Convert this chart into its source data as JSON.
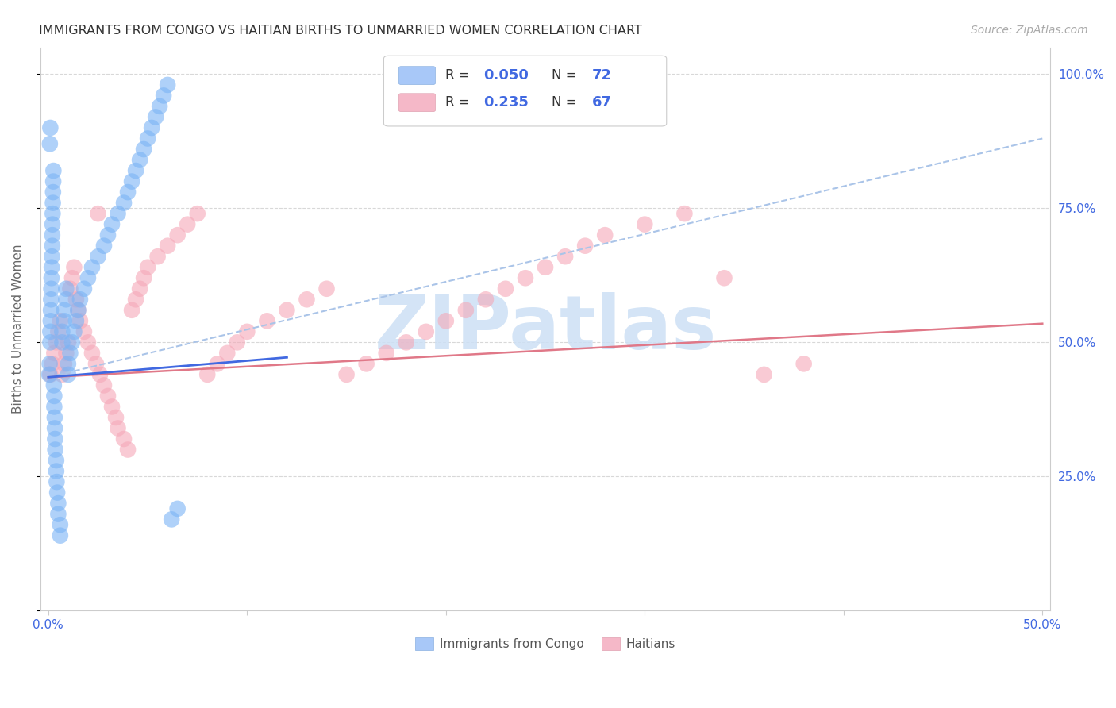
{
  "title": "IMMIGRANTS FROM CONGO VS HAITIAN BIRTHS TO UNMARRIED WOMEN CORRELATION CHART",
  "source": "Source: ZipAtlas.com",
  "ylabel": "Births to Unmarried Women",
  "congo_color": "#7ab3f5",
  "haitian_color": "#f5a8b8",
  "congo_line_color": "#4169e1",
  "haitian_line_color": "#e07888",
  "dashed_line_color": "#aac4e8",
  "watermark": "ZIPatlas",
  "watermark_color": "#cde0f5",
  "background_color": "#ffffff",
  "grid_color": "#d8d8d8",
  "axis_color": "#cccccc",
  "title_color": "#333333",
  "tick_color": "#4169e1",
  "legend_patch_congo": "#a8c8f8",
  "legend_patch_haitian": "#f5b8c8",
  "xlim": [
    -0.004,
    0.504
  ],
  "ylim": [
    0.0,
    1.05
  ],
  "x_tick_positions": [
    0.0,
    0.1,
    0.2,
    0.3,
    0.4,
    0.5
  ],
  "x_tick_labels": [
    "0.0%",
    "",
    "",
    "",
    "",
    "50.0%"
  ],
  "y_tick_positions": [
    0.0,
    0.25,
    0.5,
    0.75,
    1.0
  ],
  "y_tick_labels": [
    "",
    "25.0%",
    "50.0%",
    "75.0%",
    "100.0%"
  ],
  "congo_x": [
    0.0005,
    0.0007,
    0.0008,
    0.001,
    0.001,
    0.001,
    0.0012,
    0.0013,
    0.0014,
    0.0015,
    0.0016,
    0.0017,
    0.0018,
    0.002,
    0.002,
    0.0021,
    0.0022,
    0.0023,
    0.0024,
    0.0025,
    0.0026,
    0.0028,
    0.003,
    0.003,
    0.0032,
    0.0033,
    0.0034,
    0.0035,
    0.004,
    0.004,
    0.0042,
    0.0045,
    0.005,
    0.005,
    0.006,
    0.006,
    0.007,
    0.007,
    0.008,
    0.008,
    0.009,
    0.009,
    0.01,
    0.01,
    0.011,
    0.012,
    0.013,
    0.014,
    0.015,
    0.016,
    0.018,
    0.02,
    0.022,
    0.025,
    0.028,
    0.03,
    0.032,
    0.035,
    0.038,
    0.04,
    0.042,
    0.044,
    0.046,
    0.048,
    0.05,
    0.052,
    0.054,
    0.056,
    0.058,
    0.06,
    0.062,
    0.065
  ],
  "congo_y": [
    0.44,
    0.46,
    0.87,
    0.9,
    0.5,
    0.52,
    0.54,
    0.56,
    0.58,
    0.6,
    0.62,
    0.64,
    0.66,
    0.68,
    0.7,
    0.72,
    0.74,
    0.76,
    0.78,
    0.8,
    0.82,
    0.42,
    0.4,
    0.38,
    0.36,
    0.34,
    0.32,
    0.3,
    0.28,
    0.26,
    0.24,
    0.22,
    0.2,
    0.18,
    0.16,
    0.14,
    0.5,
    0.52,
    0.54,
    0.56,
    0.58,
    0.6,
    0.44,
    0.46,
    0.48,
    0.5,
    0.52,
    0.54,
    0.56,
    0.58,
    0.6,
    0.62,
    0.64,
    0.66,
    0.68,
    0.7,
    0.72,
    0.74,
    0.76,
    0.78,
    0.8,
    0.82,
    0.84,
    0.86,
    0.88,
    0.9,
    0.92,
    0.94,
    0.96,
    0.98,
    0.17,
    0.19
  ],
  "haitian_x": [
    0.001,
    0.002,
    0.003,
    0.004,
    0.005,
    0.006,
    0.007,
    0.008,
    0.009,
    0.01,
    0.011,
    0.012,
    0.013,
    0.014,
    0.015,
    0.016,
    0.018,
    0.02,
    0.022,
    0.024,
    0.025,
    0.026,
    0.028,
    0.03,
    0.032,
    0.034,
    0.035,
    0.038,
    0.04,
    0.042,
    0.044,
    0.046,
    0.048,
    0.05,
    0.055,
    0.06,
    0.065,
    0.07,
    0.075,
    0.08,
    0.085,
    0.09,
    0.095,
    0.1,
    0.11,
    0.12,
    0.13,
    0.14,
    0.15,
    0.16,
    0.17,
    0.18,
    0.19,
    0.2,
    0.21,
    0.22,
    0.23,
    0.24,
    0.25,
    0.26,
    0.27,
    0.28,
    0.3,
    0.32,
    0.34,
    0.36,
    0.38
  ],
  "haitian_y": [
    0.44,
    0.46,
    0.48,
    0.5,
    0.52,
    0.54,
    0.44,
    0.46,
    0.48,
    0.5,
    0.6,
    0.62,
    0.64,
    0.58,
    0.56,
    0.54,
    0.52,
    0.5,
    0.48,
    0.46,
    0.74,
    0.44,
    0.42,
    0.4,
    0.38,
    0.36,
    0.34,
    0.32,
    0.3,
    0.56,
    0.58,
    0.6,
    0.62,
    0.64,
    0.66,
    0.68,
    0.7,
    0.72,
    0.74,
    0.44,
    0.46,
    0.48,
    0.5,
    0.52,
    0.54,
    0.56,
    0.58,
    0.6,
    0.44,
    0.46,
    0.48,
    0.5,
    0.52,
    0.54,
    0.56,
    0.58,
    0.6,
    0.62,
    0.64,
    0.66,
    0.68,
    0.7,
    0.72,
    0.74,
    0.62,
    0.44,
    0.46
  ],
  "congo_line_x0": 0.0,
  "congo_line_y0": 0.435,
  "congo_line_x1": 0.12,
  "congo_line_y1": 0.472,
  "haitian_line_x0": 0.0,
  "haitian_line_y0": 0.435,
  "haitian_line_x1": 0.5,
  "haitian_line_y1": 0.535,
  "dashed_line_x0": 0.0,
  "dashed_line_y0": 0.435,
  "dashed_line_x1": 0.5,
  "dashed_line_y1": 0.88
}
